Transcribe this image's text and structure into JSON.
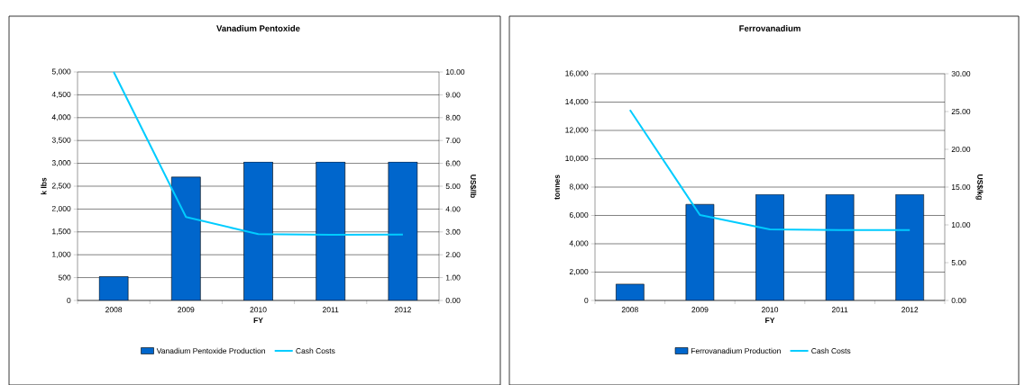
{
  "chart_data": [
    {
      "type": "bar",
      "title": "Vanadium Pentoxide",
      "xlabel": "FY",
      "ylabel": "k lbs",
      "y2label": "US$/lb",
      "categories": [
        "2008",
        "2009",
        "2010",
        "2011",
        "2012"
      ],
      "series": [
        {
          "name": "Vanadium Pentoxide Production",
          "color": "#0066cc",
          "values": [
            520,
            2700,
            3030,
            3030,
            3030
          ]
        },
        {
          "name": "Cash Costs",
          "type": "line",
          "axis": "y2",
          "color": "#00ccff",
          "values": [
            10.0,
            3.65,
            2.9,
            2.87,
            2.88
          ]
        }
      ],
      "ylim": [
        0,
        5000
      ],
      "yticks": [
        0,
        500,
        {
          "value": 1000,
          "label": "1,000"
        },
        {
          "value": 1500,
          "label": "1,500"
        },
        {
          "value": 2000,
          "label": "2,000"
        },
        {
          "value": 2500,
          "label": "2,500"
        },
        {
          "value": 3000,
          "label": "3,000"
        },
        {
          "value": 3500,
          "label": "3,500"
        },
        {
          "value": 4000,
          "label": "4,000"
        },
        {
          "value": 4500,
          "label": "4,500"
        },
        {
          "value": 5000,
          "label": "5,000"
        }
      ],
      "y2lim": [
        0,
        10
      ],
      "y2ticks": [
        {
          "value": 0,
          "label": "0.00"
        },
        {
          "value": 1,
          "label": "1.00"
        },
        {
          "value": 2,
          "label": "2.00"
        },
        {
          "value": 3,
          "label": "3.00"
        },
        {
          "value": 4,
          "label": "4.00"
        },
        {
          "value": 5,
          "label": "5.00"
        },
        {
          "value": 6,
          "label": "6.00"
        },
        {
          "value": 7,
          "label": "7.00"
        },
        {
          "value": 8,
          "label": "8.00"
        },
        {
          "value": 9,
          "label": "9.00"
        },
        {
          "value": 10,
          "label": "10.00"
        }
      ],
      "grid": "y",
      "legend": "bottom"
    },
    {
      "type": "bar",
      "title": "Ferrovanadium",
      "xlabel": "FY",
      "ylabel": "tonnes",
      "y2label": "US$/kg",
      "categories": [
        "2008",
        "2009",
        "2010",
        "2011",
        "2012"
      ],
      "series": [
        {
          "name": "Ferrovanadium Production",
          "color": "#0066cc",
          "values": [
            1150,
            6780,
            7480,
            7480,
            7480
          ]
        },
        {
          "name": "Cash Costs",
          "type": "line",
          "axis": "y2",
          "color": "#00ccff",
          "values": [
            25.2,
            11.3,
            9.4,
            9.3,
            9.3
          ]
        }
      ],
      "ylim": [
        0,
        16000
      ],
      "yticks": [
        0,
        {
          "value": 2000,
          "label": "2,000"
        },
        {
          "value": 4000,
          "label": "4,000"
        },
        {
          "value": 6000,
          "label": "6,000"
        },
        {
          "value": 8000,
          "label": "8,000"
        },
        {
          "value": 10000,
          "label": "10,000"
        },
        {
          "value": 12000,
          "label": "12,000"
        },
        {
          "value": 14000,
          "label": "14,000"
        },
        {
          "value": 16000,
          "label": "16,000"
        }
      ],
      "y2lim": [
        0,
        30
      ],
      "y2ticks": [
        {
          "value": 0,
          "label": "0.00"
        },
        {
          "value": 5,
          "label": "5.00"
        },
        {
          "value": 10,
          "label": "10.00"
        },
        {
          "value": 15,
          "label": "15.00"
        },
        {
          "value": 20,
          "label": "20.00"
        },
        {
          "value": 25,
          "label": "25.00"
        },
        {
          "value": 30,
          "label": "30.00"
        }
      ],
      "grid": "y",
      "legend": "bottom"
    }
  ]
}
